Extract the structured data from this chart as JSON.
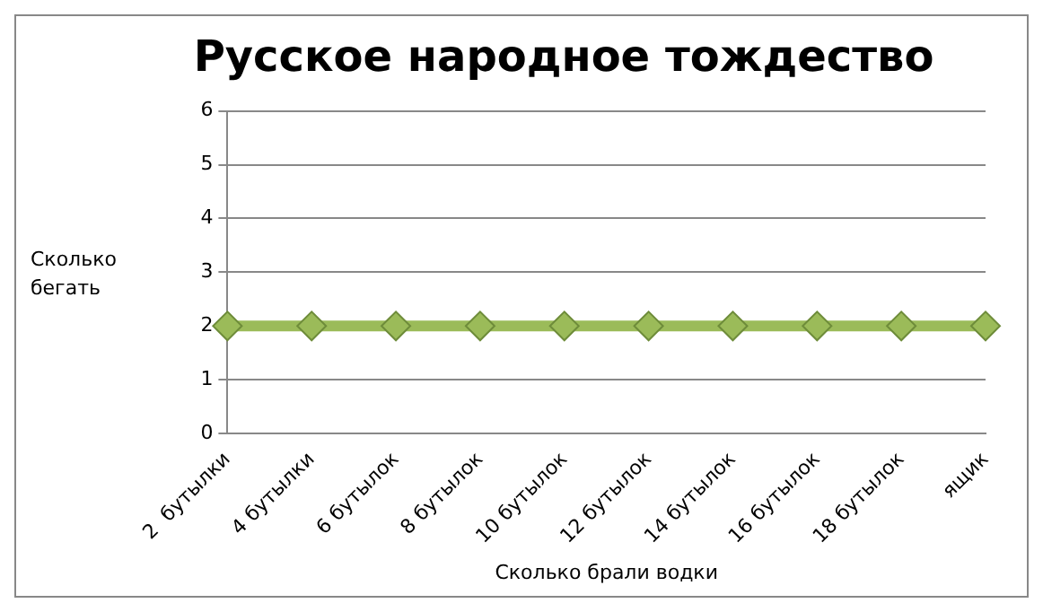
{
  "chart_data": {
    "type": "line",
    "title": "Русское народное тождество",
    "xlabel": "Сколько брали водки",
    "ylabel": "Сколько бегать",
    "categories": [
      "2  бутылки",
      "4 бутылки",
      "6 бутылок",
      "8 бутылок",
      "10 бутылок",
      "12 бутылок",
      "14 бутылок",
      "16 бутылок",
      "18 бутылок",
      "ящик"
    ],
    "series": [
      {
        "color": "#9bbb59",
        "values": [
          2,
          2,
          2,
          2,
          2,
          2,
          2,
          2,
          2,
          2
        ]
      }
    ],
    "ylim": [
      0,
      6
    ],
    "yticks": [
      0,
      1,
      2,
      3,
      4,
      5,
      6
    ],
    "grid": "y",
    "legend": false,
    "marker": "diamond",
    "line_style": "solid"
  }
}
